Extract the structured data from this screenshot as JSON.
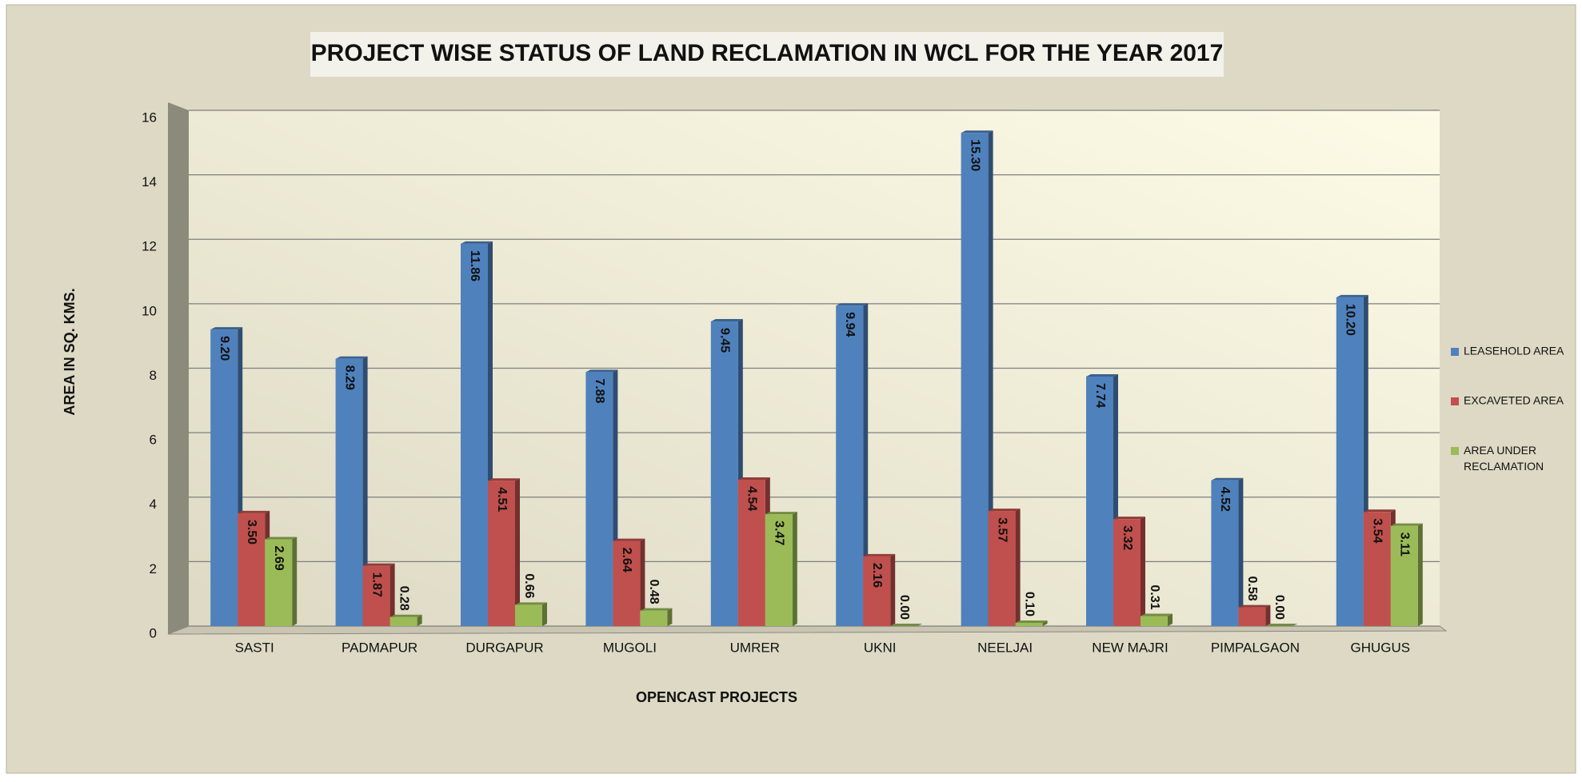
{
  "chart_data": {
    "type": "bar",
    "title": "PROJECT WISE STATUS OF LAND RECLAMATION IN WCL FOR THE YEAR 2017",
    "x_label": "OPENCAST PROJECTS",
    "y_label": "AREA IN SQ. KMS.",
    "categories": [
      "SASTI",
      "PADMAPUR",
      "DURGAPUR",
      "MUGOLI",
      "UMRER",
      "UKNI",
      "NEELJAI",
      "NEW MAJRI",
      "PIMPALGAON",
      "GHUGUS"
    ],
    "series": [
      {
        "name": "LEASEHOLD AREA",
        "color": "#4f81bd",
        "values": [
          9.2,
          8.29,
          11.86,
          7.88,
          9.45,
          9.94,
          15.3,
          7.74,
          4.52,
          10.2
        ],
        "value_labels": [
          "9.20",
          "8.29",
          "11.86",
          "7.88",
          "9.45",
          "9.94",
          "15.30",
          "7.74",
          "4.52",
          "10.20"
        ]
      },
      {
        "name": "EXCAVETED AREA",
        "color": "#c0504d",
        "values": [
          3.5,
          1.87,
          4.51,
          2.64,
          4.54,
          2.16,
          3.57,
          3.32,
          0.58,
          3.54
        ],
        "value_labels": [
          "3.50",
          "1.87",
          "4.51",
          "2.64",
          "4.54",
          "2.16",
          "3.57",
          "3.32",
          "0.58",
          "3.54"
        ]
      },
      {
        "name": "AREA UNDER RECLAMATION",
        "color": "#9bbb59",
        "values": [
          2.69,
          0.28,
          0.66,
          0.48,
          3.47,
          0,
          0.1,
          0.31,
          0,
          3.11
        ],
        "value_labels": [
          "2.69",
          "0.28",
          "0.66",
          "0.48",
          "3.47",
          "0.00",
          "0.10",
          "0.31",
          "0.00",
          "3.11"
        ]
      }
    ],
    "ylim": [
      0,
      16
    ],
    "yticks": [
      0,
      2,
      4,
      6,
      8,
      10,
      12,
      14,
      16
    ],
    "grid": true,
    "legend": "right"
  }
}
